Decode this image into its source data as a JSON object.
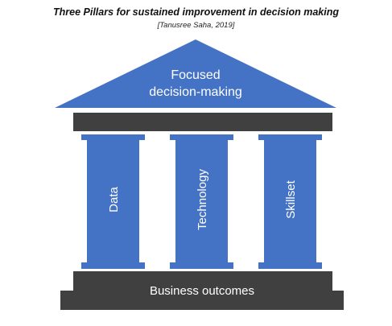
{
  "header": {
    "title": "Three Pillars for sustained improvement in decision making",
    "citation": "[Tanusree Saha, 2019]"
  },
  "roof": {
    "line1": "Focused",
    "line2": "decision-making"
  },
  "pillars": [
    {
      "label": "Data"
    },
    {
      "label": "Technology"
    },
    {
      "label": "Skillset"
    }
  ],
  "base": {
    "label": "Business outcomes"
  },
  "colors": {
    "blue": "#4472c4",
    "dark_gray": "#404040",
    "text": "#ffffff"
  }
}
